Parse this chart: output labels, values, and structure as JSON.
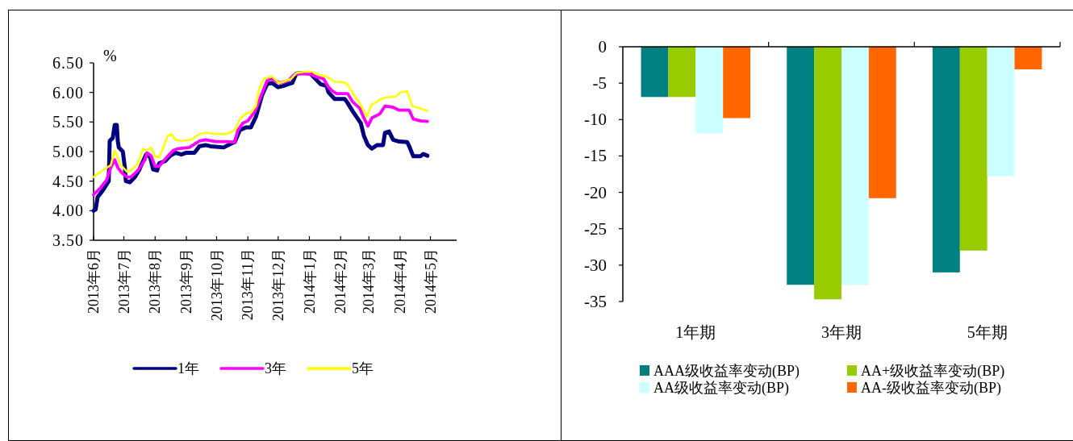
{
  "chart_data": [
    {
      "type": "line",
      "ylabel": "%",
      "legend": "bottom",
      "xlim": [
        "2013-06-01",
        "2014-05-27"
      ],
      "xticks": [
        {
          "value": "2013-06-01",
          "label": "2013年6月"
        },
        {
          "value": "2013-07-01",
          "label": "2013年7月"
        },
        {
          "value": "2013-08-01",
          "label": "2013年8月"
        },
        {
          "value": "2013-09-01",
          "label": "2013年9月"
        },
        {
          "value": "2013-10-01",
          "label": "2013年10月"
        },
        {
          "value": "2013-11-01",
          "label": "2013年11月"
        },
        {
          "value": "2013-12-01",
          "label": "2013年12月"
        },
        {
          "value": "2014-01-01",
          "label": "2014年1月"
        },
        {
          "value": "2014-02-01",
          "label": "2014年2月"
        },
        {
          "value": "2014-03-01",
          "label": "2014年3月"
        },
        {
          "value": "2014-04-01",
          "label": "2014年4月"
        },
        {
          "value": "2014-05-01",
          "label": "2014年5月"
        }
      ],
      "ylim": [
        3.5,
        6.5
      ],
      "yticks": [
        {
          "value": 3.5,
          "label": "3.50"
        },
        {
          "value": 4,
          "label": "4.00"
        },
        {
          "value": 4.5,
          "label": "4.50"
        },
        {
          "value": 5,
          "label": "5.00"
        },
        {
          "value": 5.5,
          "label": "5.50"
        },
        {
          "value": 6,
          "label": "6.00"
        },
        {
          "value": 6.5,
          "label": "6.50"
        }
      ],
      "series": [
        {
          "name": "1年",
          "color": "#000080",
          "x": [
            "2013-06-01",
            "2013-06-03",
            "2013-06-05",
            "2013-06-10",
            "2013-06-16",
            "2013-06-17",
            "2013-06-20",
            "2013-06-22",
            "2013-06-24",
            "2013-06-25",
            "2013-06-26",
            "2013-06-30",
            "2013-07-02",
            "2013-07-03",
            "2013-07-07",
            "2013-07-12",
            "2013-07-16",
            "2013-07-19",
            "2013-07-23",
            "2013-07-27",
            "2013-07-30",
            "2013-08-03",
            "2013-08-05",
            "2013-08-11",
            "2013-08-16",
            "2013-08-21",
            "2013-08-27",
            "2013-09-01",
            "2013-09-09",
            "2013-09-14",
            "2013-09-20",
            "2013-09-25",
            "2013-10-08",
            "2013-10-16",
            "2013-10-19",
            "2013-10-24",
            "2013-10-30",
            "2013-11-04",
            "2013-11-09",
            "2013-11-15",
            "2013-11-20",
            "2013-11-25",
            "2013-12-01",
            "2013-12-06",
            "2013-12-11",
            "2013-12-15",
            "2013-12-19",
            "2013-12-27",
            "2014-01-02",
            "2014-01-07",
            "2014-01-12",
            "2014-01-18",
            "2014-01-20",
            "2014-01-26",
            "2014-02-05",
            "2014-02-08",
            "2014-02-13",
            "2014-02-21",
            "2014-02-24",
            "2014-02-28",
            "2014-03-04",
            "2014-03-09",
            "2014-03-15",
            "2014-03-17",
            "2014-03-21",
            "2014-03-25",
            "2014-03-31",
            "2014-04-08",
            "2014-04-10",
            "2014-04-14",
            "2014-04-21",
            "2014-04-24",
            "2014-04-28"
          ],
          "values": [
            4.0,
            4.02,
            4.23,
            4.34,
            4.5,
            5.18,
            5.23,
            5.45,
            5.45,
            5.18,
            5.07,
            5.0,
            4.73,
            4.5,
            4.48,
            4.57,
            4.68,
            4.8,
            4.95,
            4.91,
            4.7,
            4.68,
            4.8,
            4.84,
            4.93,
            4.98,
            4.95,
            4.98,
            4.98,
            5.09,
            5.11,
            5.09,
            5.07,
            5.14,
            5.16,
            5.36,
            5.41,
            5.41,
            5.59,
            5.95,
            6.14,
            6.16,
            6.09,
            6.11,
            6.14,
            6.16,
            6.32,
            6.33,
            6.32,
            6.23,
            6.14,
            6.11,
            6.0,
            5.89,
            5.89,
            5.82,
            5.68,
            5.48,
            5.27,
            5.11,
            5.05,
            5.11,
            5.11,
            5.32,
            5.34,
            5.2,
            5.17,
            5.16,
            5.09,
            4.92,
            4.92,
            4.96,
            4.93
          ]
        },
        {
          "name": "3年",
          "color": "#ff00ff",
          "x": [
            "2013-06-01",
            "2013-06-08",
            "2013-06-14",
            "2013-06-18",
            "2013-06-22",
            "2013-06-25",
            "2013-06-29",
            "2013-07-04",
            "2013-07-08",
            "2013-07-15",
            "2013-07-22",
            "2013-07-24",
            "2013-07-28",
            "2013-08-01",
            "2013-08-05",
            "2013-08-13",
            "2013-08-19",
            "2013-08-24",
            "2013-09-04",
            "2013-09-14",
            "2013-09-20",
            "2013-09-30",
            "2013-10-11",
            "2013-10-19",
            "2013-10-22",
            "2013-10-27",
            "2013-11-01",
            "2013-11-08",
            "2013-11-15",
            "2013-11-20",
            "2013-11-25",
            "2013-12-03",
            "2013-12-11",
            "2013-12-17",
            "2013-12-22",
            "2014-01-02",
            "2014-01-07",
            "2014-01-15",
            "2014-01-20",
            "2014-01-24",
            "2014-01-28",
            "2014-02-08",
            "2014-02-13",
            "2014-02-20",
            "2014-02-24",
            "2014-02-28",
            "2014-03-04",
            "2014-03-12",
            "2014-03-17",
            "2014-03-25",
            "2014-03-31",
            "2014-04-10",
            "2014-04-14",
            "2014-04-21",
            "2014-04-28"
          ],
          "values": [
            4.27,
            4.39,
            4.52,
            4.73,
            4.86,
            4.73,
            4.64,
            4.57,
            4.57,
            4.68,
            4.86,
            4.98,
            4.93,
            4.75,
            4.75,
            4.91,
            5.02,
            5.05,
            5.07,
            5.18,
            5.2,
            5.17,
            5.17,
            5.16,
            5.36,
            5.48,
            5.52,
            5.68,
            5.98,
            6.2,
            6.23,
            6.16,
            6.2,
            6.3,
            6.32,
            6.31,
            6.27,
            6.23,
            6.09,
            6.02,
            5.98,
            5.98,
            5.84,
            5.73,
            5.57,
            5.43,
            5.57,
            5.64,
            5.77,
            5.75,
            5.7,
            5.7,
            5.55,
            5.52,
            5.51
          ]
        },
        {
          "name": "5年",
          "color": "#ffff00",
          "x": [
            "2013-06-01",
            "2013-06-10",
            "2013-06-18",
            "2013-06-22",
            "2013-06-28",
            "2013-07-04",
            "2013-07-08",
            "2013-07-15",
            "2013-07-20",
            "2013-07-24",
            "2013-07-28",
            "2013-08-01",
            "2013-08-05",
            "2013-08-08",
            "2013-08-13",
            "2013-08-17",
            "2013-08-21",
            "2013-08-27",
            "2013-09-06",
            "2013-09-14",
            "2013-09-22",
            "2013-09-28",
            "2013-10-11",
            "2013-10-19",
            "2013-10-24",
            "2013-10-30",
            "2013-11-04",
            "2013-11-09",
            "2013-11-12",
            "2013-11-17",
            "2013-11-25",
            "2013-12-02",
            "2013-12-06",
            "2013-12-14",
            "2013-12-19",
            "2013-12-27",
            "2014-01-04",
            "2014-01-10",
            "2014-01-18",
            "2014-01-26",
            "2014-02-05",
            "2014-02-09",
            "2014-02-13",
            "2014-02-20",
            "2014-02-27",
            "2014-03-04",
            "2014-03-09",
            "2014-03-13",
            "2014-03-17",
            "2014-03-28",
            "2014-04-01",
            "2014-04-08",
            "2014-04-13",
            "2014-04-21",
            "2014-04-28"
          ],
          "values": [
            4.57,
            4.68,
            4.77,
            5.02,
            4.77,
            4.66,
            4.68,
            4.8,
            5.05,
            5.02,
            5.07,
            4.91,
            4.91,
            5.02,
            5.25,
            5.3,
            5.2,
            5.18,
            5.2,
            5.3,
            5.32,
            5.3,
            5.3,
            5.36,
            5.55,
            5.64,
            5.66,
            5.77,
            6.05,
            6.23,
            6.27,
            6.16,
            6.18,
            6.23,
            6.33,
            6.35,
            6.35,
            6.3,
            6.27,
            6.18,
            6.17,
            6.11,
            5.98,
            5.82,
            5.59,
            5.8,
            5.84,
            5.89,
            5.91,
            5.93,
            6.0,
            6.02,
            5.77,
            5.73,
            5.69
          ]
        }
      ]
    },
    {
      "type": "bar",
      "legend": "bottom",
      "categories": [
        "1年期",
        "3年期",
        "5年期"
      ],
      "ylim": [
        -35,
        0
      ],
      "yticks": [
        0,
        -5,
        -10,
        -15,
        -20,
        -25,
        -30,
        -35
      ],
      "series": [
        {
          "name": "AAA级收益率变动(BP)",
          "color": "#008080",
          "values": [
            -6.9,
            -32.7,
            -31.0
          ]
        },
        {
          "name": "AA+级收益率变动(BP)",
          "color": "#99cc00",
          "values": [
            -6.9,
            -34.7,
            -28.0
          ]
        },
        {
          "name": "AA级收益率变动(BP)",
          "color": "#ccffff",
          "values": [
            -11.9,
            -32.7,
            -17.8
          ]
        },
        {
          "name": "AA-级收益率变动(BP)",
          "color": "#ff6600",
          "values": [
            -9.8,
            -20.8,
            -3.1
          ]
        }
      ]
    }
  ]
}
